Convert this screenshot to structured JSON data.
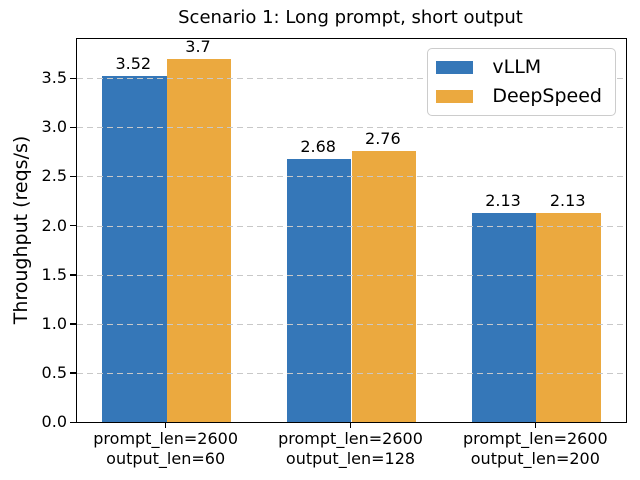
{
  "chart_data": {
    "type": "bar",
    "title": "Scenario 1: Long prompt, short output",
    "ylabel": "Throughput (reqs/s)",
    "xlabel": "",
    "categories": [
      "prompt_len=2600\noutput_len=60",
      "prompt_len=2600\noutput_len=128",
      "prompt_len=2600\noutput_len=200"
    ],
    "series": [
      {
        "name": "vLLM",
        "color": "#3577b8",
        "values": [
          3.52,
          2.68,
          2.13
        ],
        "labels": [
          "3.52",
          "2.68",
          "2.13"
        ]
      },
      {
        "name": "DeepSpeed",
        "color": "#eba93f",
        "values": [
          3.7,
          2.76,
          2.13
        ],
        "labels": [
          "3.7",
          "2.76",
          "2.13"
        ]
      }
    ],
    "ylim": [
      0,
      3.9
    ],
    "yticks": [
      "0.0",
      "0.5",
      "1.0",
      "1.5",
      "2.0",
      "2.5",
      "3.0",
      "3.5"
    ],
    "bar_width_units": 0.35,
    "grid": "horizontal-dashed",
    "legend_position": "upper-right",
    "colors": {
      "grid": "#c8c8c8",
      "spine": "#000000",
      "background": "#ffffff",
      "text": "#000000"
    }
  }
}
